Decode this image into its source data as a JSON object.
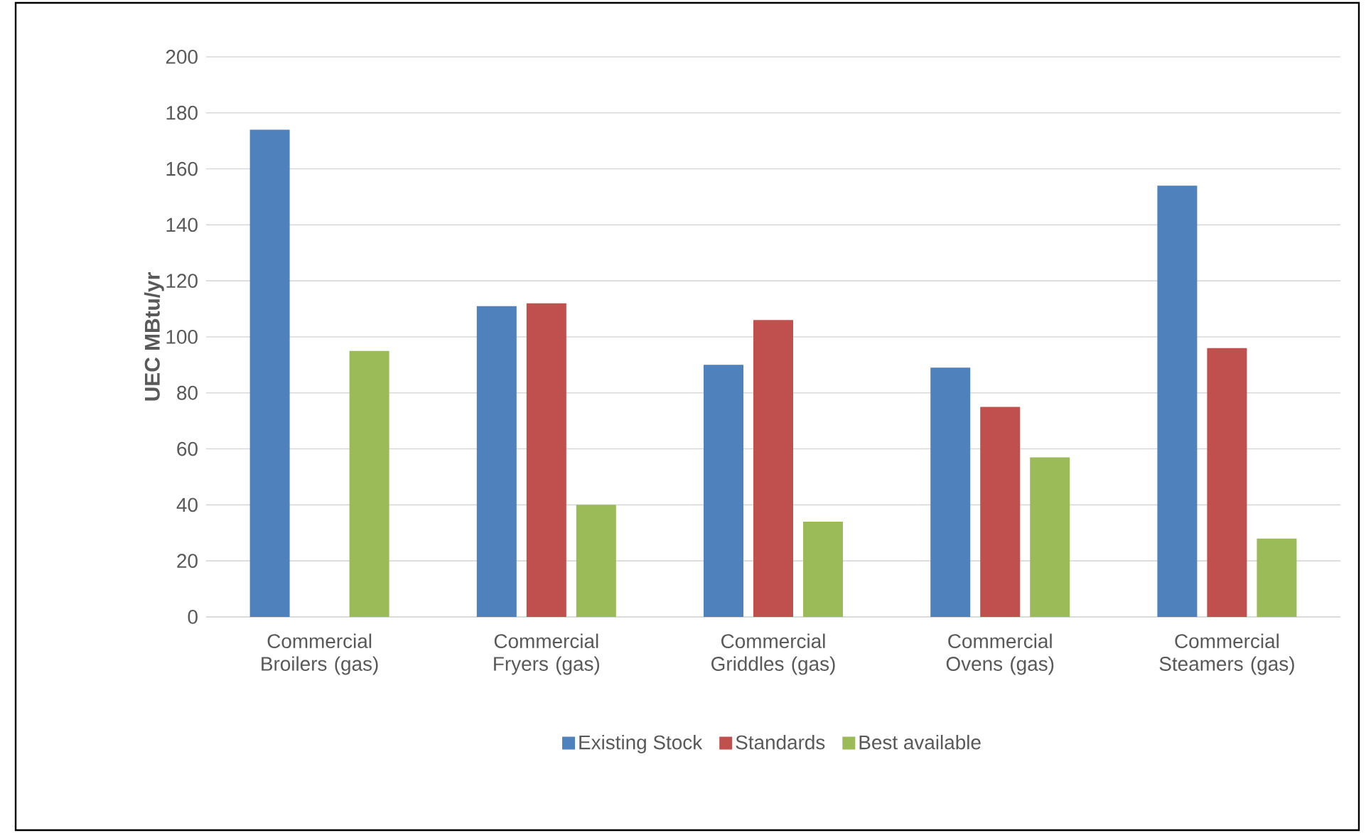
{
  "chart_data": {
    "type": "bar",
    "ylabel": "UEC MBtu/yr",
    "categories": [
      "Commercial Broilers (gas)",
      "Commercial Fryers (gas)",
      "Commercial Griddles (gas)",
      "Commercial Ovens (gas)",
      "Commercial Steamers (gas)"
    ],
    "series": [
      {
        "name": "Existing Stock",
        "color": "#4f81bd",
        "values": [
          174,
          111,
          90,
          89,
          154
        ]
      },
      {
        "name": "Standards",
        "color": "#c0504d",
        "values": [
          null,
          112,
          106,
          75,
          96
        ]
      },
      {
        "name": "Best available",
        "color": "#9bbb59",
        "values": [
          95,
          40,
          34,
          57,
          28
        ]
      }
    ],
    "ylim": [
      0,
      200
    ],
    "yticks": [
      0,
      20,
      40,
      60,
      80,
      100,
      120,
      140,
      160,
      180,
      200
    ],
    "grid": "y",
    "legend": "bottom"
  }
}
